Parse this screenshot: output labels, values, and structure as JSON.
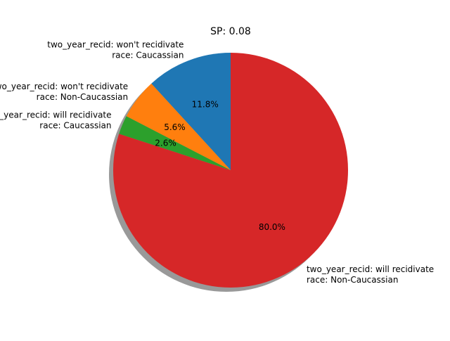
{
  "chart_data": {
    "type": "pie",
    "title": "SP: 0.08",
    "shadow": true,
    "start_angle": 90,
    "direction": "counterclockwise",
    "slices": [
      {
        "label_lines": [
          "two_year_recid: won't recidivate",
          "race: Caucassian"
        ],
        "value": 11.8,
        "percent_label": "11.8%",
        "color": "#1f77b4"
      },
      {
        "label_lines": [
          "two_year_recid: won't recidivate",
          "race: Non-Caucassian"
        ],
        "value": 5.6,
        "percent_label": "5.6%",
        "color": "#ff7f0e"
      },
      {
        "label_lines": [
          "two_year_recid: will recidivate",
          "race: Caucassian"
        ],
        "value": 2.6,
        "percent_label": "2.6%",
        "color": "#2ca02c"
      },
      {
        "label_lines": [
          "two_year_recid: will recidivate",
          "race: Non-Caucassian"
        ],
        "value": 80.0,
        "percent_label": "80.0%",
        "color": "#d62728"
      }
    ]
  }
}
